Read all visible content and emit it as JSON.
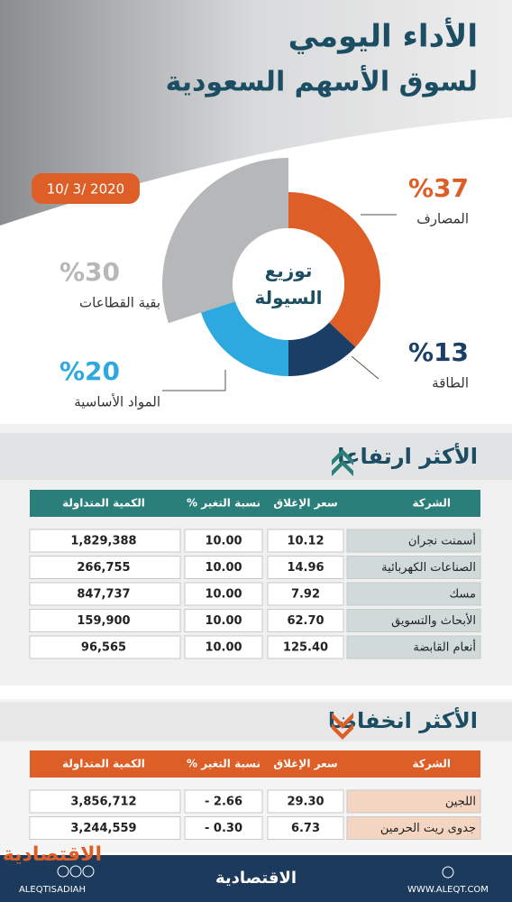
{
  "header": {
    "title": "الأداء اليومي",
    "subtitle": "لسوق الأسهم السعودية",
    "date": "10/ 3/ 2020"
  },
  "chart_data": {
    "type": "pie",
    "title": "توزيع السيولة",
    "categories": [
      "المصارف",
      "الطاقة",
      "المواد الأساسية",
      "بقية القطاعات"
    ],
    "values": [
      37,
      13,
      20,
      30
    ],
    "value_labels": [
      "%37",
      "%13",
      "%20",
      "%30"
    ],
    "colors": [
      "#dd5f27",
      "#1b3e66",
      "#2ea9df",
      "#b5b7b9"
    ]
  },
  "gainers": {
    "title": "الأكثر ارتفاعا",
    "columns": [
      "الشركة",
      "سعر الإغلاق",
      "نسبة التغير %",
      "الكمية المتداولة"
    ],
    "rows": [
      [
        "أسمنت نجران",
        "10.12",
        "10.00",
        "1,829,388"
      ],
      [
        "الصناعات الكهربائية",
        "14.96",
        "10.00",
        "266,755"
      ],
      [
        "مسك",
        "7.92",
        "10.00",
        "847,737"
      ],
      [
        "الأبحاث والتسويق",
        "62.70",
        "10.00",
        "159,900"
      ],
      [
        "أنعام القابضة",
        "125.40",
        "10.00",
        "96,565"
      ]
    ]
  },
  "losers": {
    "title": "الأكثر انخفاضا",
    "columns": [
      "الشركة",
      "سعر الإغلاق",
      "نسبة التغير %",
      "الكمية المتداولة"
    ],
    "rows": [
      [
        "اللجين",
        "29.30",
        "- 2.66",
        "3,856,712"
      ],
      [
        "جدوى ريت الحرمين",
        "6.73",
        "- 0.30",
        "3,244,559"
      ]
    ]
  },
  "footer": {
    "logo": "الاقتصادية",
    "handle": "ALEQTISADIAH",
    "brand": "الاقتصادية",
    "url": "WWW.ALEQT.COM"
  }
}
